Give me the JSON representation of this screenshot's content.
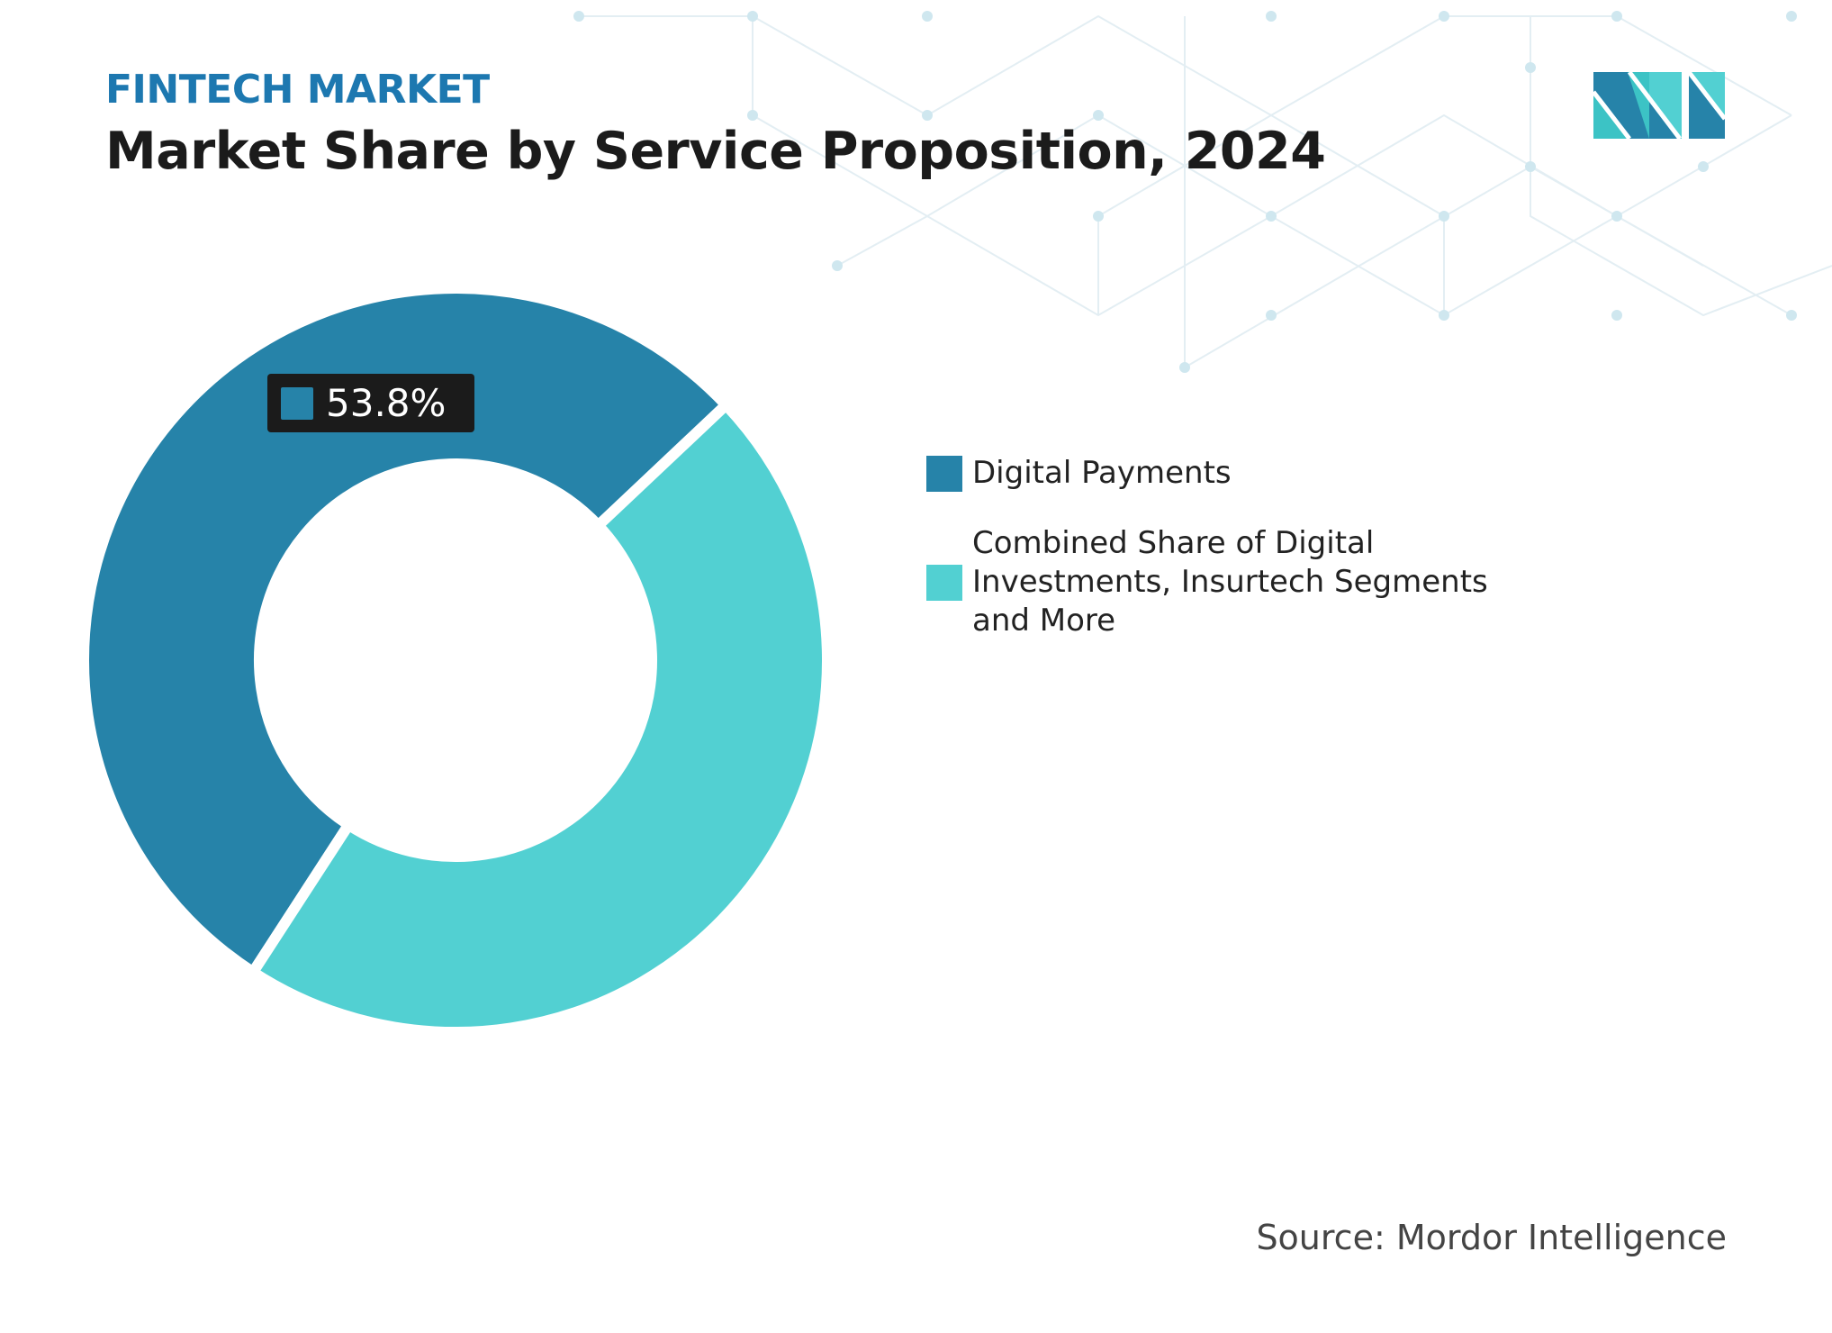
{
  "header": {
    "kicker": "FINTECH MARKET",
    "title": "Market Share by Service Proposition, 2024"
  },
  "colors": {
    "kicker": "#1d78b0",
    "dark": "#2683a9",
    "light": "#52d0d2",
    "callout_bg": "#1b1b1b"
  },
  "chart_data": {
    "type": "pie",
    "style": "donut",
    "title": "Market Share by Service Proposition, 2024",
    "series": [
      {
        "name": "Digital Payments",
        "value": 53.8,
        "color": "#2683a9"
      },
      {
        "name": "Combined Share of Digital Investments, Insurtech Segments and More",
        "value": 46.2,
        "color": "#52d0d2"
      }
    ],
    "data_labels": [
      "53.8%"
    ],
    "legend_position": "right"
  },
  "source": "Source: Mordor Intelligence",
  "logo": {
    "text": "MI",
    "icon": "mordor-intelligence-logo"
  }
}
